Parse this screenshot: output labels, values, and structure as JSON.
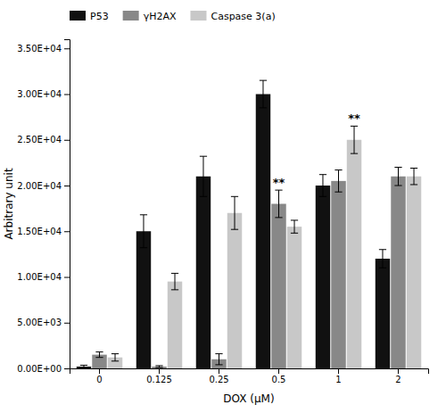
{
  "chart_data": {
    "type": "bar",
    "x_label": "DOX (μM)",
    "y_label": "Arbitrary unit",
    "categories": [
      "0",
      "0.125",
      "0.25",
      "0.5",
      "1",
      "2"
    ],
    "series": [
      {
        "name": "P53",
        "color": "#111111",
        "values": [
          200,
          15000,
          21000,
          30000,
          20000,
          12000
        ],
        "errors": [
          150,
          1800,
          2200,
          1500,
          1200,
          1000
        ]
      },
      {
        "name": "γH2AX",
        "color": "#888888",
        "values": [
          1500,
          200,
          1000,
          18000,
          20500,
          21000
        ],
        "errors": [
          300,
          100,
          600,
          1500,
          1200,
          1000
        ]
      },
      {
        "name": "Caspase 3(a)",
        "color": "#c8c8c8",
        "values": [
          1200,
          9500,
          17000,
          15500,
          25000,
          21000
        ],
        "errors": [
          400,
          900,
          1800,
          700,
          1500,
          900
        ]
      }
    ],
    "ylim": [
      0,
      36000
    ],
    "yticks": [
      {
        "value": 0,
        "label": "0.00E+00"
      },
      {
        "value": 5000,
        "label": "5.00E+03"
      },
      {
        "value": 10000,
        "label": "1.00E+04"
      },
      {
        "value": 15000,
        "label": "1.50E+04"
      },
      {
        "value": 20000,
        "label": "2.00E+04"
      },
      {
        "value": 25000,
        "label": "2.50E+04"
      },
      {
        "value": 30000,
        "label": "3.00E+04"
      },
      {
        "value": 35000,
        "label": "3.50E+04"
      }
    ],
    "annotations": [
      {
        "text": "**",
        "series": "γH2AX",
        "category": "0.5"
      },
      {
        "text": "**",
        "series": "Caspase 3(a)",
        "category": "1"
      }
    ],
    "legend": "upper left",
    "grid": false
  }
}
